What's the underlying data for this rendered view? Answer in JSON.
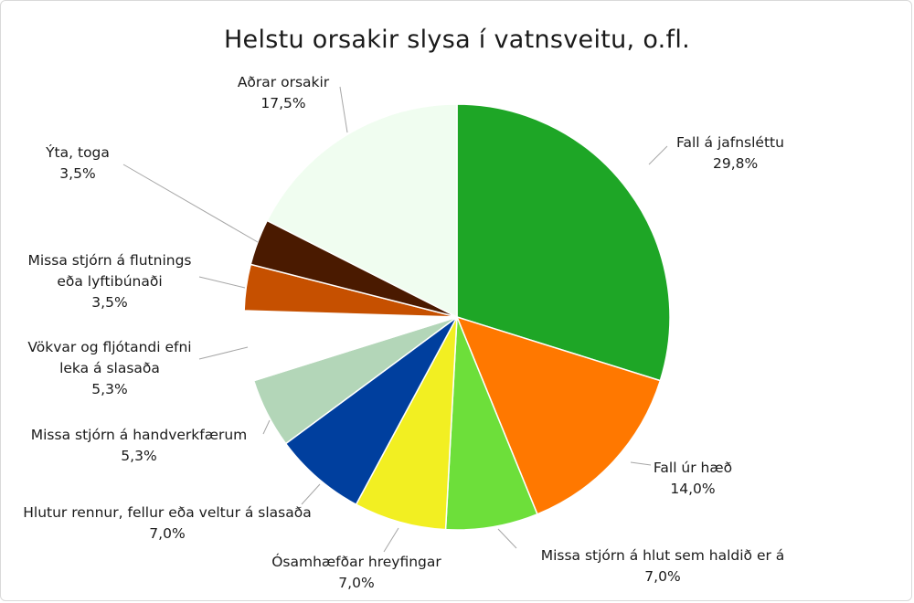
{
  "chart_data": {
    "type": "pie",
    "title": "Helstu orsakir slysa í vatnsveitu, o.fl.",
    "slices": [
      {
        "label": "Fall á jafnsléttu",
        "value": 29.8,
        "value_label": "29,8%",
        "color": "#1ea626"
      },
      {
        "label": "Fall úr hæð",
        "value": 14.0,
        "value_label": "14,0%",
        "color": "#ff7800"
      },
      {
        "label": "Missa stjórn á hlut sem haldið er á",
        "value": 7.0,
        "value_label": "7,0%",
        "color": "#6ddf3a"
      },
      {
        "label": "Ósamhæfðar hreyfingar",
        "value": 7.0,
        "value_label": "7,0%",
        "color": "#f2ef22"
      },
      {
        "label": "Hlutur rennur, fellur eða veltur á slasaða",
        "value": 7.0,
        "value_label": "7,0%",
        "color": "#003f9e"
      },
      {
        "label": "Missa stjórn á handverkfærum",
        "value": 5.3,
        "value_label": "5,3%",
        "color": "#b3d6b8"
      },
      {
        "label": "Vökvar og fljótandi efni leka á slasaða",
        "value": 5.3,
        "value_label": "5,3%",
        "color": "#ffffff"
      },
      {
        "label": "Missa stjórn á flutnings eða lyftibúnaði",
        "value": 3.5,
        "value_label": "3,5%",
        "color": "#c65000"
      },
      {
        "label": "Ýta, toga",
        "value": 3.5,
        "value_label": "3,5%",
        "color": "#4a1a00"
      },
      {
        "label": "Aðrar orsakir",
        "value": 17.5,
        "value_label": "17,5%",
        "color": "#f0fdf0"
      }
    ],
    "start_angle_deg": 0,
    "direction": "clockwise",
    "legend": "none",
    "data_labels": "outside-with-leader-lines"
  }
}
